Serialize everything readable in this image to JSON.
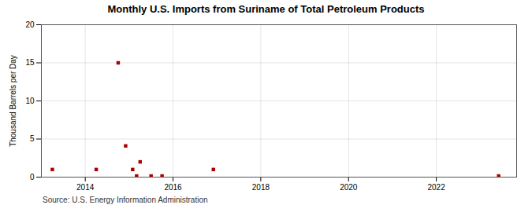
{
  "chart_data": {
    "type": "scatter",
    "title": "Monthly U.S. Imports from Suriname of Total Petroleum Products",
    "ylabel": "Thousand Barrels per Day",
    "source": "Source: U.S. Energy Information Administration",
    "x": [
      2013.25,
      2014.25,
      2014.75,
      2014.92,
      2015.08,
      2015.17,
      2015.25,
      2015.5,
      2015.75,
      2016.92,
      2023.42
    ],
    "values": [
      1.0,
      1.0,
      15.0,
      4.1,
      1.0,
      0.15,
      2.0,
      0.15,
      0.15,
      1.0,
      0.15
    ],
    "color": "#aa0000",
    "marker": "square",
    "xlim": [
      2013.0,
      2023.83
    ],
    "xticks": [
      2014,
      2016,
      2018,
      2020,
      2022
    ],
    "ylim": [
      0,
      20
    ],
    "yticks": [
      0,
      5,
      10,
      15,
      20
    ],
    "grid": true
  }
}
